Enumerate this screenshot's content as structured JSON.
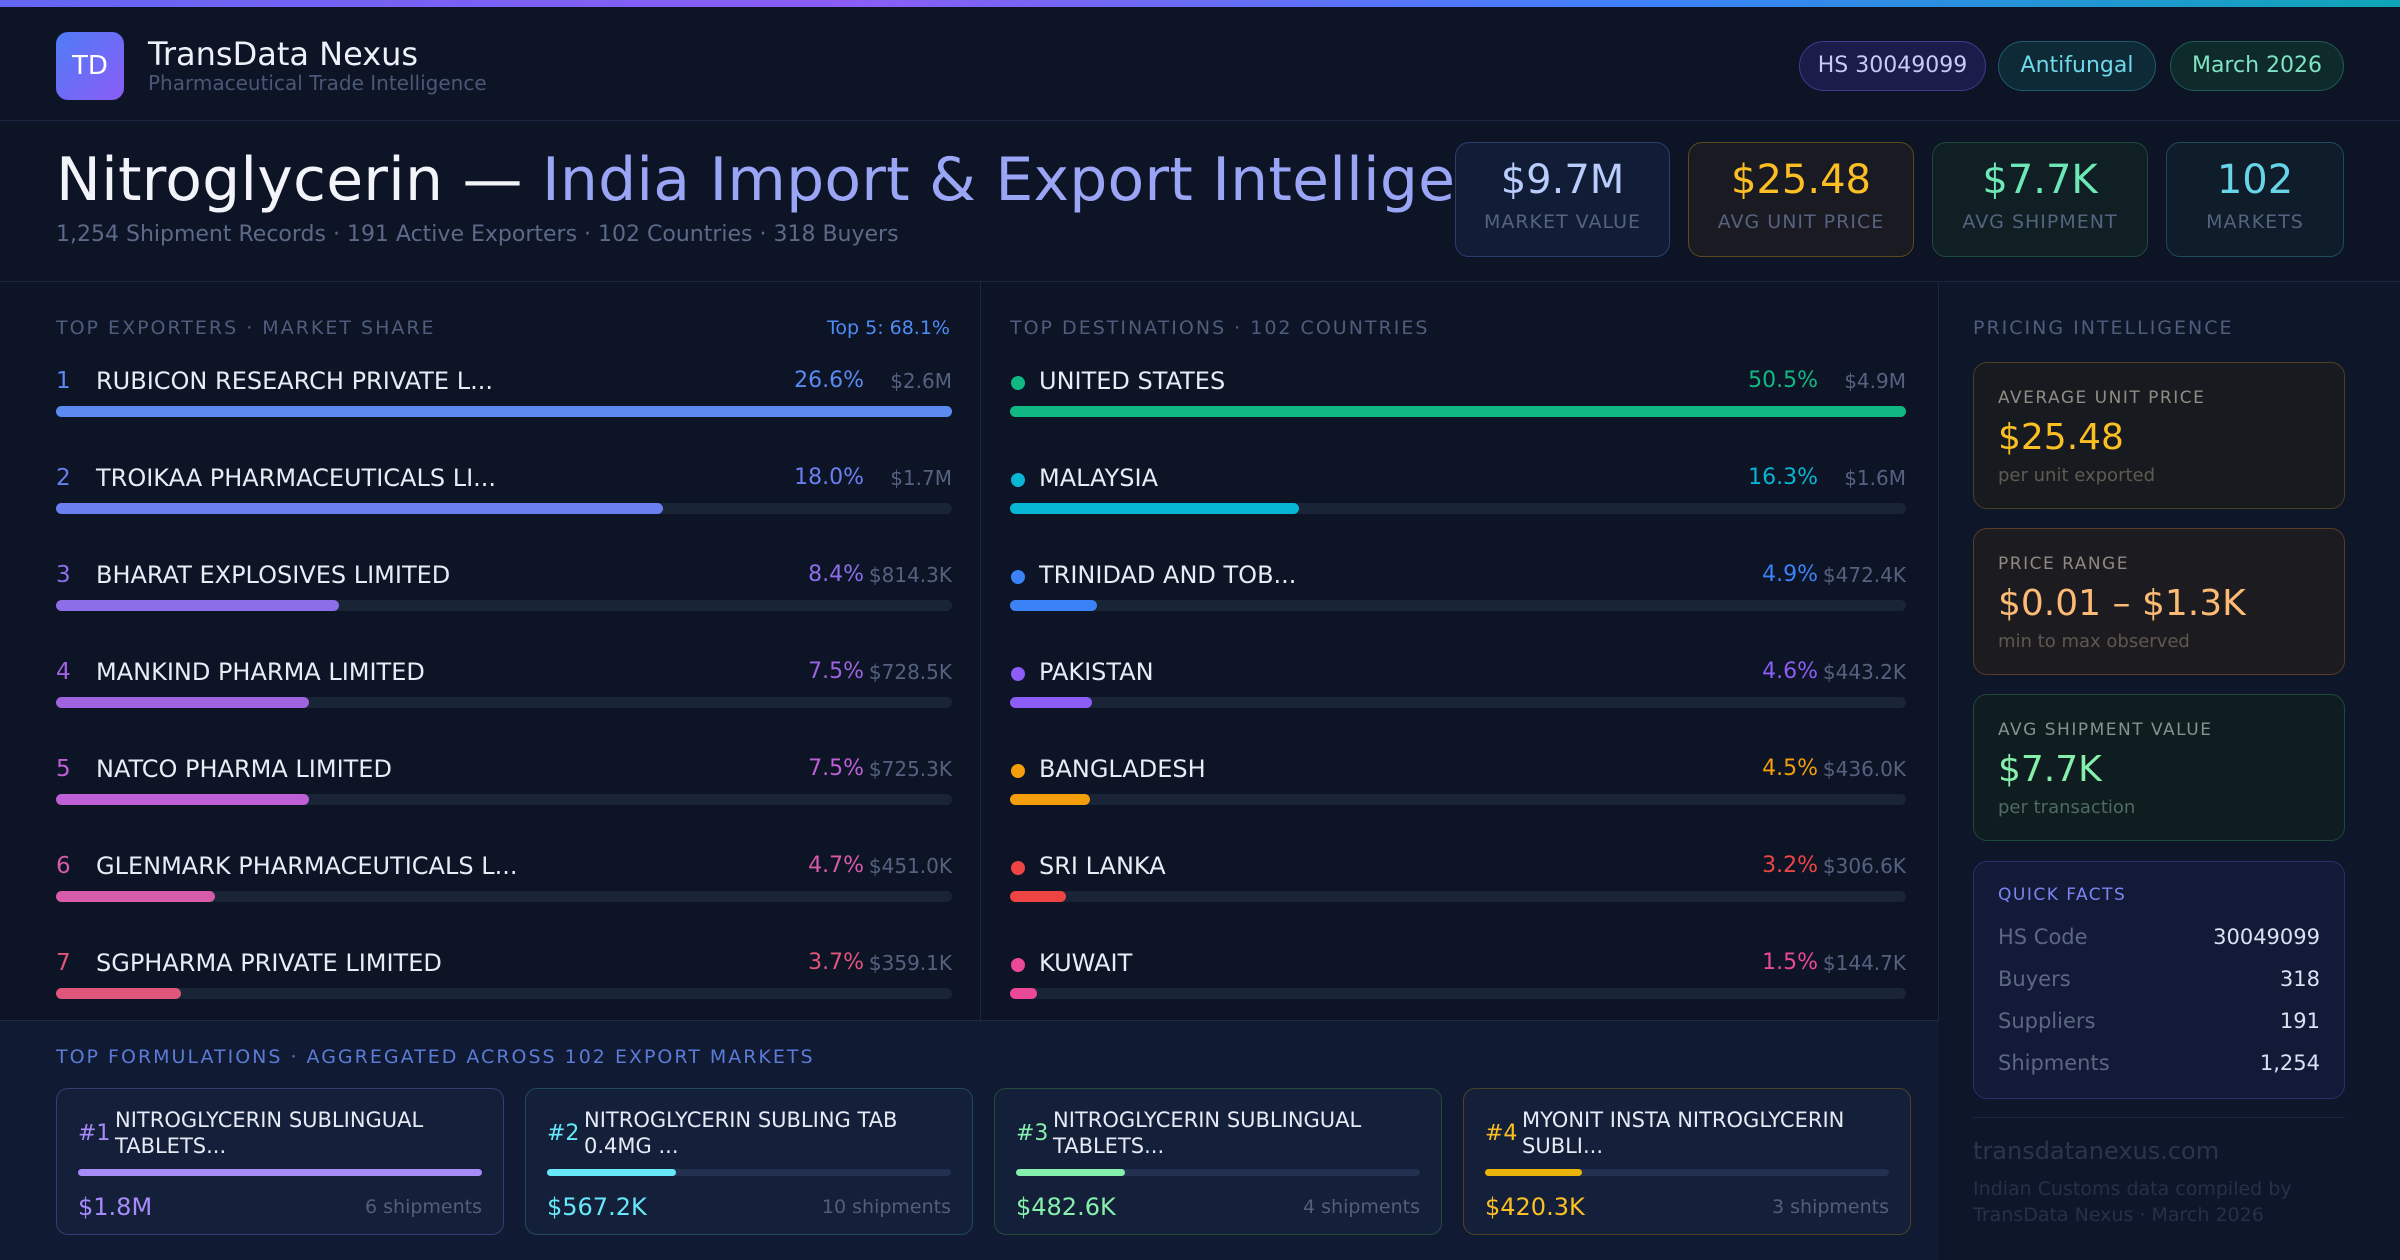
{
  "brand": {
    "logo_text": "TD",
    "name": "TransData Nexus",
    "tagline": "Pharmaceutical Trade Intelligence"
  },
  "pills": {
    "hs": "HS 30049099",
    "category": "Antifungal",
    "date": "March 2026"
  },
  "hero": {
    "title_main": "Nitroglycerin — ",
    "title_accent": "India Import & Export Intelligence",
    "subtitle": "1,254 Shipment Records · 191 Active Exporters · 102 Countries · 318 Buyers"
  },
  "stats": [
    {
      "value": "$9.7M",
      "label": "MARKET VALUE"
    },
    {
      "value": "$25.48",
      "label": "AVG UNIT PRICE"
    },
    {
      "value": "$7.7K",
      "label": "AVG SHIPMENT"
    },
    {
      "value": "102",
      "label": "MARKETS"
    }
  ],
  "exporters": {
    "title": "TOP EXPORTERS · MARKET SHARE",
    "top5": "Top 5: 68.1%",
    "items": [
      {
        "rank": "1",
        "name": "RUBICON RESEARCH PRIVATE L...",
        "pct": "26.6%",
        "amt": "$2.6M",
        "share": 1.0,
        "color": "#5b8af0"
      },
      {
        "rank": "2",
        "name": "TROIKAA PHARMACEUTICALS LI...",
        "pct": "18.0%",
        "amt": "$1.7M",
        "share": 0.677,
        "color": "#6b7ff0"
      },
      {
        "rank": "3",
        "name": "BHARAT EXPLOSIVES LIMITED",
        "pct": "8.4%",
        "amt": "$814.3K",
        "share": 0.316,
        "color": "#8b6ee8"
      },
      {
        "rank": "4",
        "name": "MANKIND PHARMA LIMITED",
        "pct": "7.5%",
        "amt": "$728.5K",
        "share": 0.282,
        "color": "#a063e0"
      },
      {
        "rank": "5",
        "name": "NATCO PHARMA LIMITED",
        "pct": "7.5%",
        "amt": "$725.3K",
        "share": 0.282,
        "color": "#bf5fd6"
      },
      {
        "rank": "6",
        "name": "GLENMARK PHARMACEUTICALS L...",
        "pct": "4.7%",
        "amt": "$451.0K",
        "share": 0.177,
        "color": "#d65ba8"
      },
      {
        "rank": "7",
        "name": "SGPHARMA PRIVATE LIMITED",
        "pct": "3.7%",
        "amt": "$359.1K",
        "share": 0.139,
        "color": "#e0567a"
      }
    ]
  },
  "destinations": {
    "title": "TOP DESTINATIONS · 102 COUNTRIES",
    "items": [
      {
        "name": "UNITED STATES",
        "pct": "50.5%",
        "amt": "$4.9M",
        "share": 1.0,
        "color": "#10b981"
      },
      {
        "name": "MALAYSIA",
        "pct": "16.3%",
        "amt": "$1.6M",
        "share": 0.323,
        "color": "#06b6d4"
      },
      {
        "name": "TRINIDAD AND TOB...",
        "pct": "4.9%",
        "amt": "$472.4K",
        "share": 0.097,
        "color": "#3b82f6"
      },
      {
        "name": "PAKISTAN",
        "pct": "4.6%",
        "amt": "$443.2K",
        "share": 0.091,
        "color": "#8b5cf6"
      },
      {
        "name": "BANGLADESH",
        "pct": "4.5%",
        "amt": "$436.0K",
        "share": 0.089,
        "color": "#f59e0b"
      },
      {
        "name": "SRI LANKA",
        "pct": "3.2%",
        "amt": "$306.6K",
        "share": 0.063,
        "color": "#ef4444"
      },
      {
        "name": "KUWAIT",
        "pct": "1.5%",
        "amt": "$144.7K",
        "share": 0.03,
        "color": "#ec4899"
      }
    ]
  },
  "pricing": {
    "title": "PRICING INTELLIGENCE",
    "cards": [
      {
        "key": "AVERAGE UNIT PRICE",
        "value": "$25.48",
        "sub": "per unit exported"
      },
      {
        "key": "PRICE RANGE",
        "value": "$0.01 – $1.3K",
        "sub": "min to max observed"
      },
      {
        "key": "AVG SHIPMENT VALUE",
        "value": "$7.7K",
        "sub": "per transaction"
      }
    ],
    "quick_facts": {
      "title": "QUICK FACTS",
      "rows": [
        {
          "label": "HS Code",
          "value": "30049099"
        },
        {
          "label": "Buyers",
          "value": "318"
        },
        {
          "label": "Suppliers",
          "value": "191"
        },
        {
          "label": "Shipments",
          "value": "1,254"
        }
      ]
    },
    "footer_url": "transdatanexus.com",
    "footer_note": "Indian Customs data compiled by TransData Nexus · March 2026"
  },
  "formulations": {
    "title": "TOP FORMULATIONS · AGGREGATED ACROSS 102 EXPORT MARKETS",
    "items": [
      {
        "num": "#1",
        "name": "NITROGLYCERIN SUBLINGUAL TABLETS...",
        "value": "$1.8M",
        "shipments": "6 shipments",
        "share": 1.0
      },
      {
        "num": "#2",
        "name": "NITROGLYCERIN SUBLING TAB 0.4MG ...",
        "value": "$567.2K",
        "shipments": "10 shipments",
        "share": 0.32
      },
      {
        "num": "#3",
        "name": "NITROGLYCERIN SUBLINGUAL TABLETS...",
        "value": "$482.6K",
        "shipments": "4 shipments",
        "share": 0.27
      },
      {
        "num": "#4",
        "name": "MYONIT INSTA NITROGLYCERIN SUBLI...",
        "value": "$420.3K",
        "shipments": "3 shipments",
        "share": 0.24
      }
    ]
  }
}
